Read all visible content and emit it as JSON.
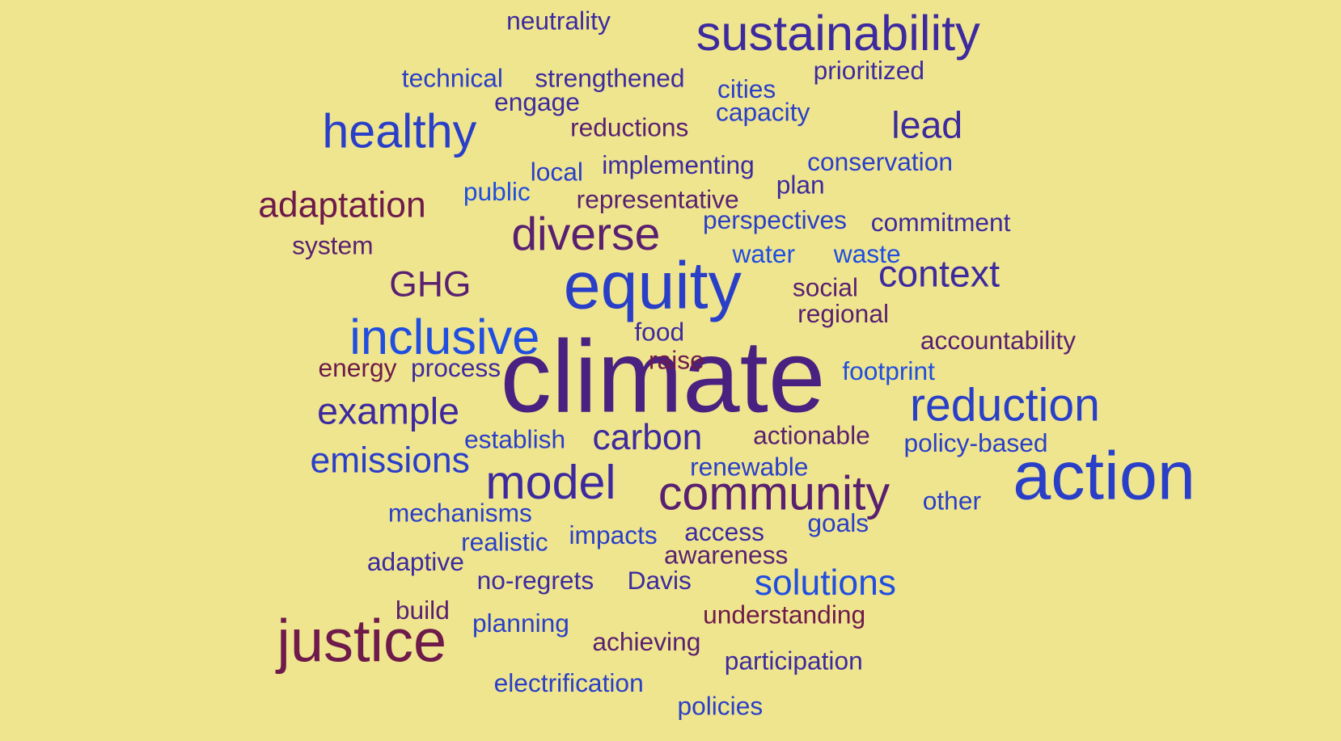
{
  "words": [
    "neutrality",
    "sustainability",
    "technical",
    "strengthened",
    "cities",
    "prioritized",
    "engage",
    "capacity",
    "healthy",
    "reductions",
    "lead",
    "local",
    "implementing",
    "conservation",
    "plan",
    "adaptation",
    "public",
    "representative",
    "perspectives",
    "commitment",
    "diverse",
    "system",
    "water",
    "waste",
    "GHG",
    "equity",
    "context",
    "social",
    "regional",
    "inclusive",
    "food",
    "accountability",
    "climate",
    "raise",
    "energy",
    "process",
    "footprint",
    "example",
    "reduction",
    "establish",
    "carbon",
    "actionable",
    "policy-based",
    "emissions",
    "action",
    "model",
    "renewable",
    "community",
    "other",
    "mechanisms",
    "goals",
    "impacts",
    "access",
    "realistic",
    "awareness",
    "adaptive",
    "no-regrets",
    "Davis",
    "solutions",
    "build",
    "understanding",
    "justice",
    "planning",
    "achieving",
    "participation",
    "electrification",
    "policies"
  ]
}
